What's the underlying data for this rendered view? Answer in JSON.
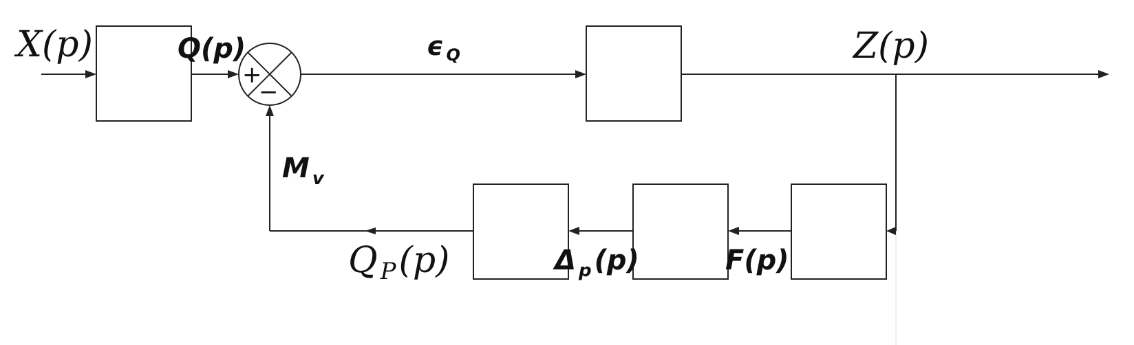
{
  "signals": {
    "x": "X(p)",
    "q": "Q(p)",
    "eps_base": "ϵ",
    "eps_sub": "Q",
    "z": "Z(p)",
    "mv_base": "M",
    "mv_sub": "v",
    "qp_base": "Q",
    "qp_sub": "P",
    "qp_arg": "(p)",
    "delta_base": "Δ",
    "delta_sub": "p",
    "delta_arg": "(p)",
    "f": "F(p)"
  },
  "summing_junction": {
    "plus": "+",
    "minus": "−"
  }
}
